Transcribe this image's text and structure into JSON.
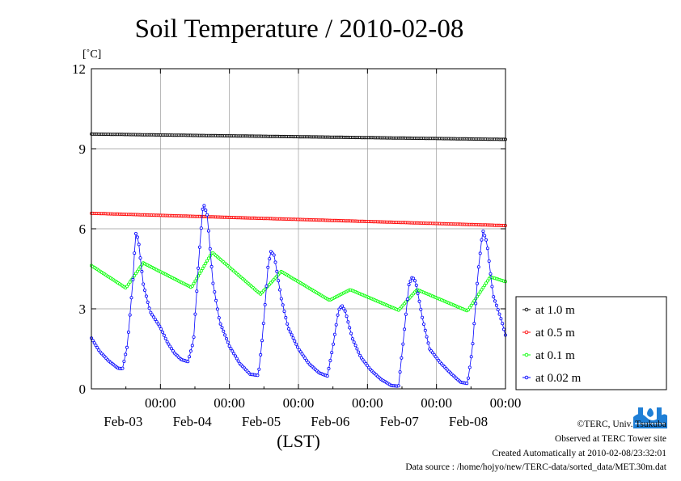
{
  "chart_data": {
    "type": "line",
    "title": "Soil Temperature / 2010-02-08",
    "ylabel": "[˚C]",
    "xlabel": "(LST)",
    "ylim": [
      0,
      12
    ],
    "yticks": [
      0,
      3,
      6,
      9,
      12
    ],
    "xlim": [
      0,
      6
    ],
    "x_unit": "days since 2010-02-02 12:00",
    "xticks": [
      {
        "x": 1,
        "time": "00:00",
        "date": "Feb-03"
      },
      {
        "x": 2,
        "time": "00:00",
        "date": "Feb-04"
      },
      {
        "x": 3,
        "time": "00:00",
        "date": "Feb-05"
      },
      {
        "x": 4,
        "time": "00:00",
        "date": "Feb-06"
      },
      {
        "x": 5,
        "time": "00:00",
        "date": "Feb-07"
      },
      {
        "x": 6,
        "time": "00:00",
        "date": "Feb-08"
      }
    ],
    "grid": true,
    "legend_position": "right",
    "series": [
      {
        "name": "at 1.0 m",
        "color": "#000000",
        "points": [
          [
            0,
            9.55
          ],
          [
            6,
            9.35
          ]
        ]
      },
      {
        "name": "at 0.5 m",
        "color": "#ff0000",
        "points": [
          [
            0,
            6.58
          ],
          [
            6,
            6.12
          ]
        ]
      },
      {
        "name": "at 0.1 m",
        "color": "#00ff00",
        "points": [
          [
            0,
            4.62
          ],
          [
            0.5,
            3.78
          ],
          [
            0.75,
            4.72
          ],
          [
            1.45,
            3.8
          ],
          [
            1.75,
            5.12
          ],
          [
            2.45,
            3.55
          ],
          [
            2.75,
            4.4
          ],
          [
            3.45,
            3.32
          ],
          [
            3.75,
            3.72
          ],
          [
            4.45,
            2.95
          ],
          [
            4.72,
            3.72
          ],
          [
            5.45,
            2.92
          ],
          [
            5.78,
            4.2
          ],
          [
            6,
            4.02
          ]
        ]
      },
      {
        "name": "at 0.02 m",
        "color": "#0000ff",
        "points": [
          [
            0,
            1.9
          ],
          [
            0.12,
            1.4
          ],
          [
            0.25,
            1.05
          ],
          [
            0.38,
            0.78
          ],
          [
            0.45,
            0.75
          ],
          [
            0.52,
            1.6
          ],
          [
            0.6,
            4.0
          ],
          [
            0.64,
            5.85
          ],
          [
            0.68,
            5.6
          ],
          [
            0.75,
            3.95
          ],
          [
            0.85,
            2.9
          ],
          [
            1.0,
            2.3
          ],
          [
            1.1,
            1.75
          ],
          [
            1.2,
            1.35
          ],
          [
            1.3,
            1.1
          ],
          [
            1.4,
            1.02
          ],
          [
            1.48,
            1.8
          ],
          [
            1.56,
            5.0
          ],
          [
            1.62,
            6.98
          ],
          [
            1.68,
            6.5
          ],
          [
            1.76,
            4.0
          ],
          [
            1.86,
            2.5
          ],
          [
            2.0,
            1.6
          ],
          [
            2.15,
            0.95
          ],
          [
            2.3,
            0.55
          ],
          [
            2.42,
            0.5
          ],
          [
            2.48,
            2.0
          ],
          [
            2.56,
            4.6
          ],
          [
            2.6,
            5.15
          ],
          [
            2.65,
            5.0
          ],
          [
            2.75,
            3.4
          ],
          [
            2.85,
            2.3
          ],
          [
            3.0,
            1.5
          ],
          [
            3.15,
            0.95
          ],
          [
            3.3,
            0.6
          ],
          [
            3.42,
            0.48
          ],
          [
            3.5,
            1.6
          ],
          [
            3.58,
            2.95
          ],
          [
            3.63,
            3.12
          ],
          [
            3.68,
            2.9
          ],
          [
            3.78,
            1.9
          ],
          [
            3.9,
            1.2
          ],
          [
            4.05,
            0.7
          ],
          [
            4.2,
            0.35
          ],
          [
            4.35,
            0.12
          ],
          [
            4.45,
            0.1
          ],
          [
            4.52,
            1.8
          ],
          [
            4.6,
            3.9
          ],
          [
            4.65,
            4.2
          ],
          [
            4.7,
            4.0
          ],
          [
            4.8,
            2.6
          ],
          [
            4.9,
            1.5
          ],
          [
            5.05,
            1.0
          ],
          [
            5.2,
            0.6
          ],
          [
            5.35,
            0.25
          ],
          [
            5.45,
            0.2
          ],
          [
            5.52,
            1.5
          ],
          [
            5.6,
            4.3
          ],
          [
            5.67,
            5.95
          ],
          [
            5.73,
            5.5
          ],
          [
            5.82,
            3.5
          ],
          [
            5.9,
            2.9
          ],
          [
            5.95,
            2.5
          ],
          [
            6,
            2.0
          ]
        ]
      }
    ]
  },
  "credits": {
    "copyright": "©TERC, Univ. Tsukuba",
    "observed": "Observed at TERC Tower site",
    "created": "Created Automatically at 2010-02-08/23:32:01",
    "source": "Data source : /home/hojyo/new/TERC-data/sorted_data/MET.30m.dat"
  },
  "logo": {
    "text": "TERC",
    "color": "#1f7fd6"
  }
}
